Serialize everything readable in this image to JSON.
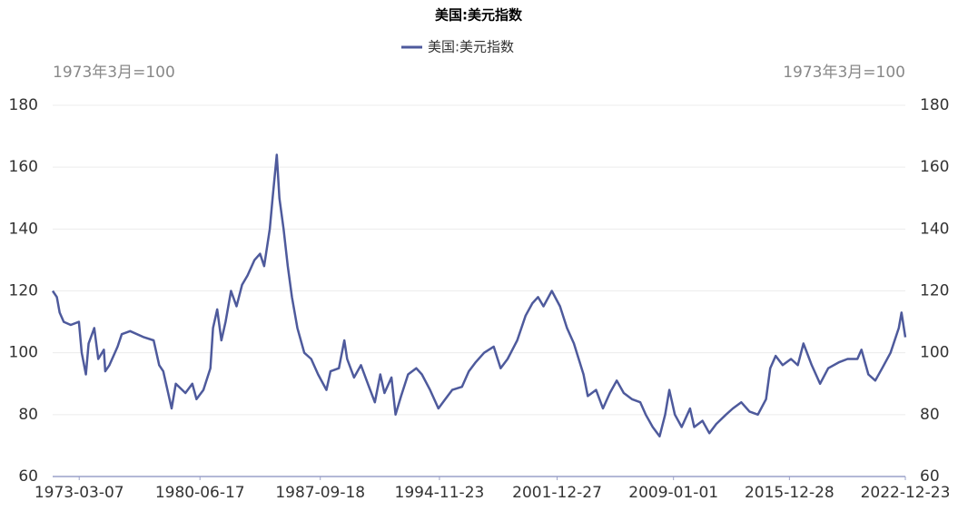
{
  "chart_data": {
    "type": "line",
    "title": "美国:美元指数",
    "ylabel": "1973年3月=100",
    "y2label": "1973年3月=100",
    "legend": "top",
    "grid": true,
    "xlim": [
      "1971-08-01",
      "2022-12-23"
    ],
    "xticks": [
      "1973-03-07",
      "1980-06-17",
      "1987-09-18",
      "1994-11-23",
      "2001-12-27",
      "2009-01-01",
      "2015-12-28",
      "2022-12-23"
    ],
    "ylim": [
      60,
      180
    ],
    "yticks": [
      60,
      80,
      100,
      120,
      140,
      160,
      180
    ],
    "y2lim": [
      60,
      180
    ],
    "y2ticks": [
      60,
      80,
      100,
      120,
      140,
      160,
      180
    ],
    "x": [
      "1971-08-01",
      "1971-11-01",
      "1972-01-01",
      "1972-04-01",
      "1972-09-01",
      "1973-03-01",
      "1973-05-01",
      "1973-08-01",
      "1973-10-01",
      "1974-02-01",
      "1974-05-01",
      "1974-09-01",
      "1974-10-01",
      "1975-01-01",
      "1975-07-01",
      "1975-10-01",
      "1976-04-01",
      "1977-02-01",
      "1977-09-01",
      "1978-01-01",
      "1978-04-01",
      "1978-10-01",
      "1979-01-01",
      "1979-08-01",
      "1980-01-01",
      "1980-04-01",
      "1980-09-01",
      "1981-02-01",
      "1981-04-01",
      "1981-07-01",
      "1981-10-01",
      "1982-01-01",
      "1982-05-01",
      "1982-09-01",
      "1983-01-01",
      "1983-05-01",
      "1983-10-01",
      "1984-02-01",
      "1984-05-01",
      "1984-09-01",
      "1984-11-01",
      "1985-02-01",
      "1985-04-01",
      "1985-07-01",
      "1985-10-01",
      "1986-01-01",
      "1986-05-01",
      "1986-10-01",
      "1987-03-01",
      "1987-08-01",
      "1988-02-01",
      "1988-05-01",
      "1988-11-01",
      "1989-03-01",
      "1989-05-01",
      "1989-10-01",
      "1990-03-01",
      "1990-08-01",
      "1991-01-01",
      "1991-05-01",
      "1991-08-01",
      "1992-01-01",
      "1992-04-01",
      "1992-08-01",
      "1993-01-01",
      "1993-07-01",
      "1993-11-01",
      "1994-05-01",
      "1994-11-01",
      "1995-04-01",
      "1995-09-01",
      "1996-04-01",
      "1996-09-01",
      "1997-02-01",
      "1997-08-01",
      "1998-03-01",
      "1998-08-01",
      "1999-01-01",
      "1999-08-01",
      "2000-02-01",
      "2000-07-01",
      "2000-11-01",
      "2001-03-01",
      "2001-09-01",
      "2002-03-01",
      "2002-08-01",
      "2003-01-01",
      "2003-08-01",
      "2003-11-01",
      "2004-05-01",
      "2004-10-01",
      "2005-03-01",
      "2005-08-01",
      "2006-01-01",
      "2006-07-01",
      "2007-01-01",
      "2007-05-01",
      "2007-10-01",
      "2008-03-01",
      "2008-07-01",
      "2008-10-01",
      "2009-02-01",
      "2009-07-01",
      "2010-01-01",
      "2010-04-01",
      "2010-10-01",
      "2011-03-01",
      "2011-08-01",
      "2012-03-01",
      "2012-08-01",
      "2013-02-01",
      "2013-08-01",
      "2014-02-01",
      "2014-08-01",
      "2014-11-01",
      "2015-03-01",
      "2015-08-01",
      "2016-02-01",
      "2016-07-01",
      "2016-11-01",
      "2017-05-01",
      "2017-11-01",
      "2018-05-01",
      "2019-01-01",
      "2019-07-01",
      "2020-02-01",
      "2020-05-01",
      "2020-10-01",
      "2021-03-01",
      "2021-08-01",
      "2022-02-01",
      "2022-08-01",
      "2022-10-01",
      "2022-12-23"
    ],
    "series": [
      {
        "name": "美国:美元指数",
        "color": "#4e5a9c",
        "values": [
          120,
          118,
          113,
          110,
          109,
          110,
          100,
          93,
          103,
          108,
          98,
          101,
          94,
          96,
          102,
          106,
          107,
          105,
          104,
          96,
          94,
          82,
          90,
          87,
          90,
          85,
          88,
          95,
          108,
          114,
          104,
          110,
          120,
          115,
          122,
          125,
          130,
          132,
          128,
          140,
          150,
          164,
          150,
          140,
          128,
          118,
          108,
          100,
          98,
          93,
          88,
          94,
          95,
          104,
          98,
          92,
          96,
          90,
          84,
          93,
          87,
          92,
          80,
          86,
          93,
          95,
          93,
          88,
          82,
          85,
          88,
          89,
          94,
          97,
          100,
          102,
          95,
          98,
          104,
          112,
          116,
          118,
          115,
          120,
          115,
          108,
          103,
          93,
          86,
          88,
          82,
          87,
          91,
          87,
          85,
          84,
          80,
          76,
          73,
          80,
          88,
          80,
          76,
          82,
          76,
          78,
          74,
          77,
          80,
          82,
          84,
          81,
          80,
          85,
          95,
          99,
          96,
          98,
          96,
          103,
          96,
          90,
          95,
          97,
          98,
          98,
          101,
          93,
          91,
          95,
          100,
          108,
          113,
          105
        ]
      }
    ]
  }
}
